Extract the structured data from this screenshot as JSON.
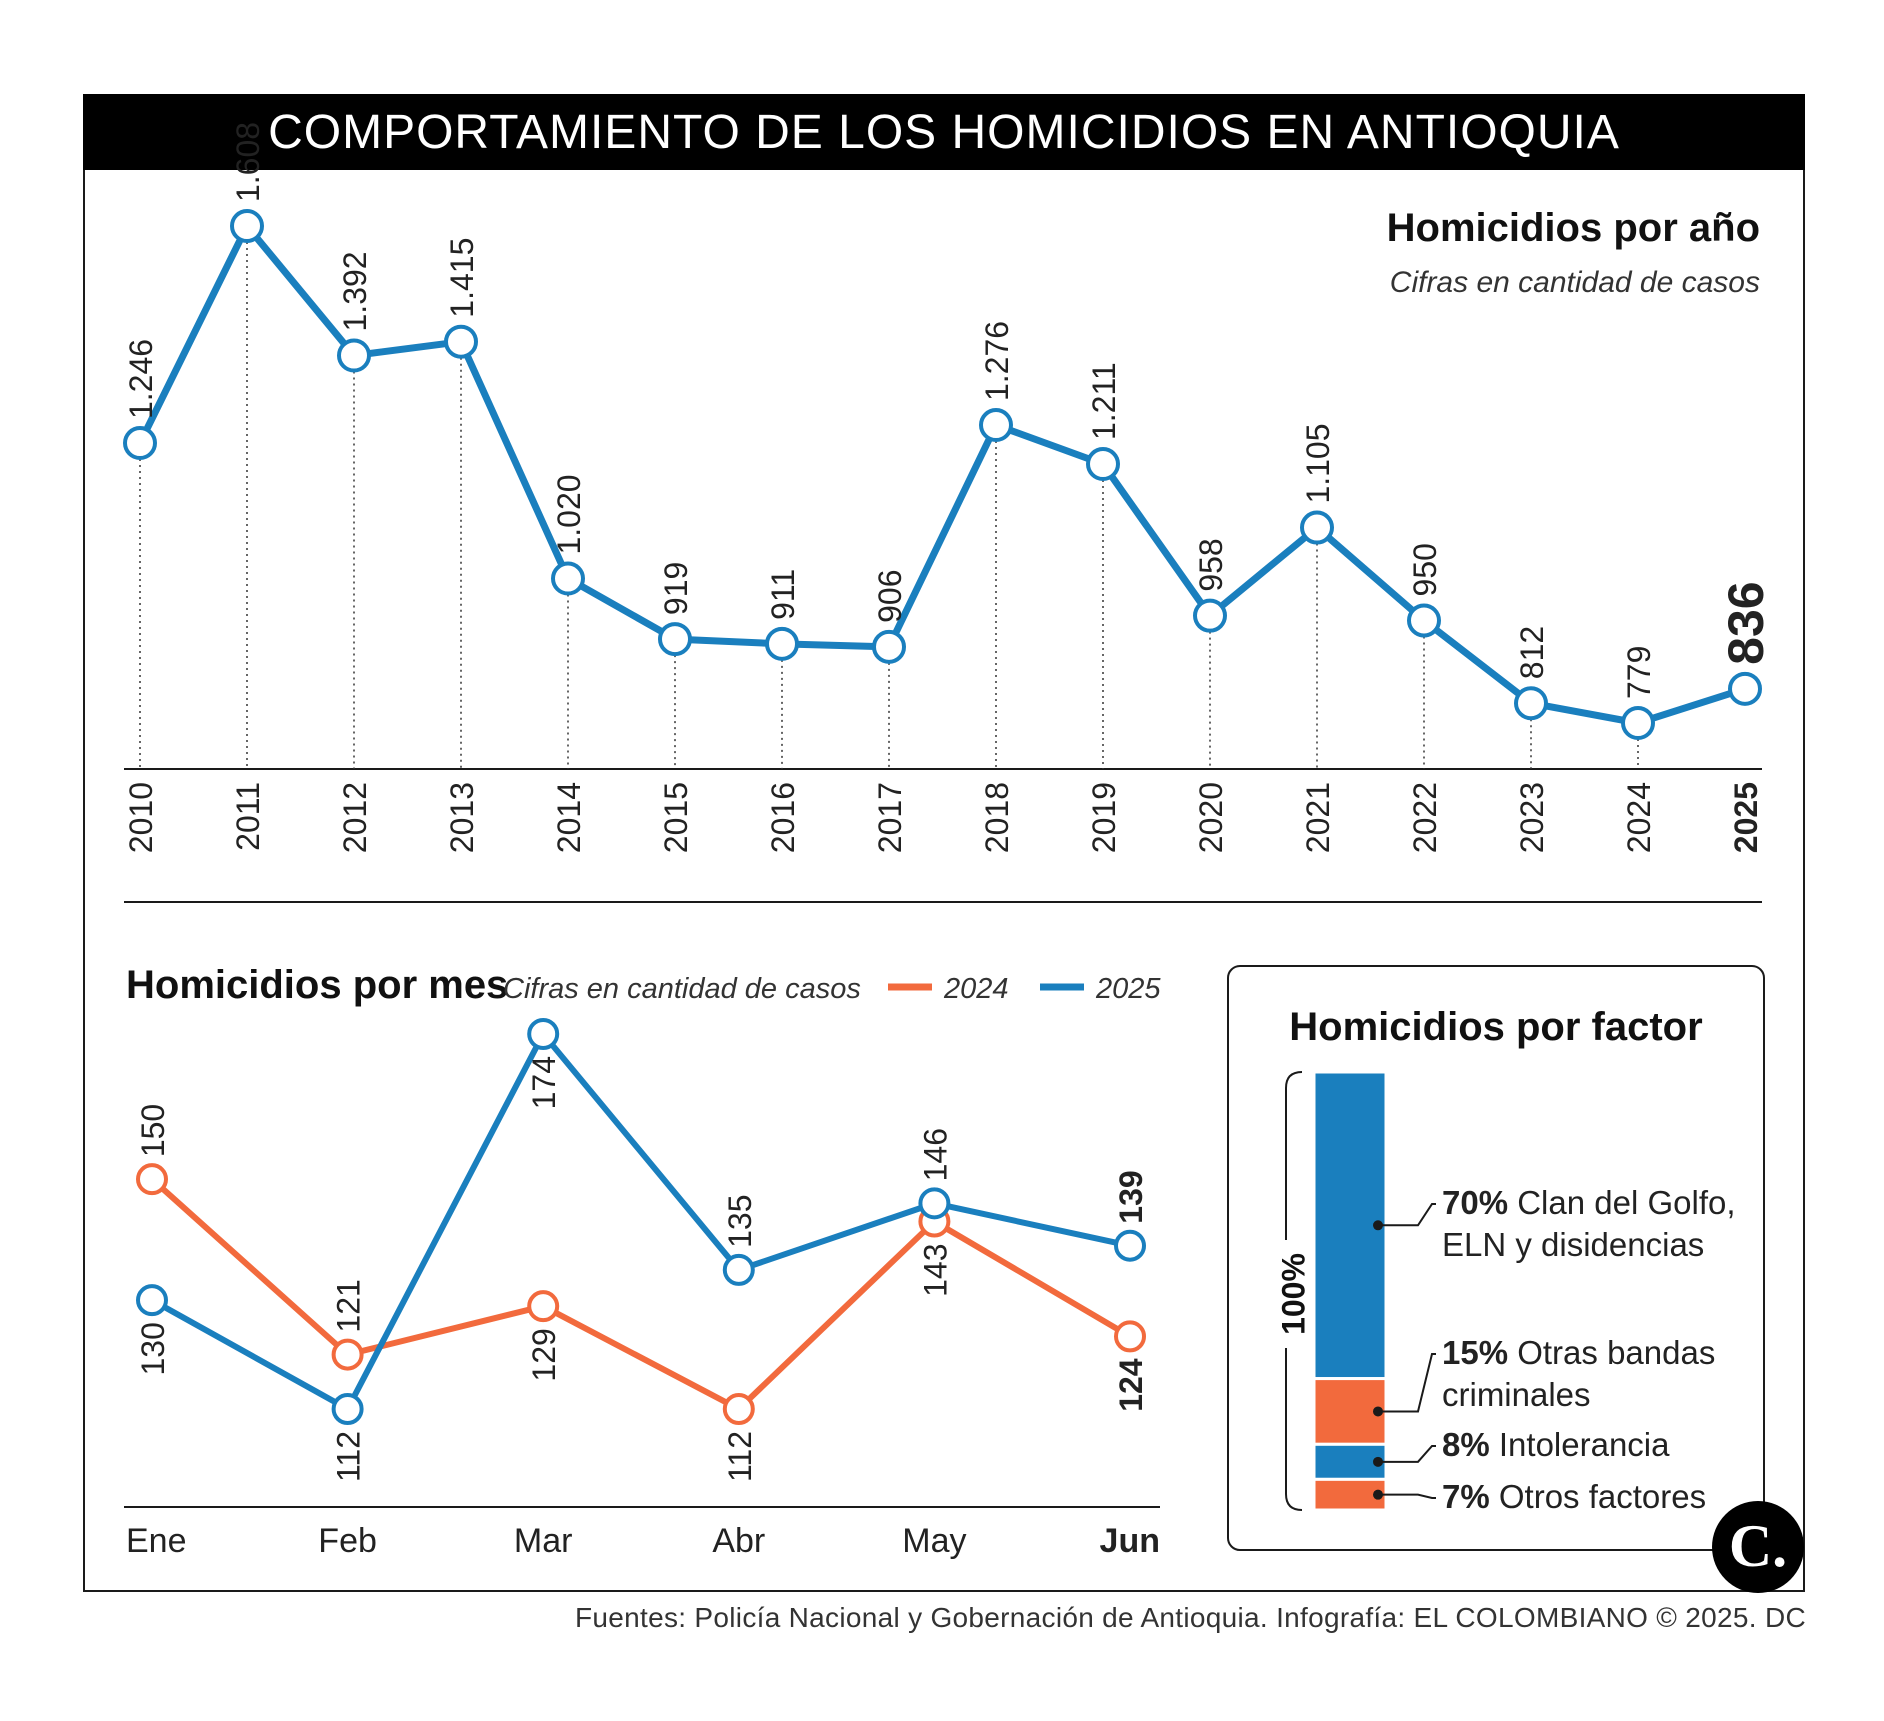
{
  "header": {
    "title": "COMPORTAMIENTO DE LOS HOMICIDIOS EN ANTIOQUIA"
  },
  "source": "Fuentes: Policía Nacional y Gobernación de Antioquia. Infografía: EL COLOMBIANO © 2025. DC",
  "logo": {
    "letter": "C."
  },
  "colors": {
    "blue": "#1a7fbe",
    "orange": "#f26a3d",
    "dark": "#1a1a1a"
  },
  "chart_data": [
    {
      "type": "line",
      "title": "Homicidios por año",
      "subtitle": "Cifras en cantidad de casos",
      "categories": [
        "2010",
        "2011",
        "2012",
        "2013",
        "2014",
        "2015",
        "2016",
        "2017",
        "2018",
        "2019",
        "2020",
        "2021",
        "2022",
        "2023",
        "2024",
        "2025"
      ],
      "values": [
        1246,
        1608,
        1392,
        1415,
        1020,
        919,
        911,
        906,
        1276,
        1211,
        958,
        1105,
        950,
        812,
        779,
        836
      ],
      "labels": [
        "1.246",
        "1.608",
        "1.392",
        "1.415",
        "1.020",
        "919",
        "911",
        "906",
        "1.276",
        "1.211",
        "958",
        "1.105",
        "950",
        "812",
        "779",
        "836"
      ],
      "highlight": "2025",
      "ylim": [
        700,
        1640
      ]
    },
    {
      "type": "line",
      "title": "Homicidios por mes",
      "subtitle": "Cifras en cantidad de casos",
      "categories": [
        "Ene",
        "Feb",
        "Mar",
        "Abr",
        "May",
        "Jun"
      ],
      "highlight": "Jun",
      "series": [
        {
          "name": "2024",
          "color": "#f26a3d",
          "values": [
            150,
            121,
            129,
            112,
            143,
            124
          ]
        },
        {
          "name": "2025",
          "color": "#1a7fbe",
          "values": [
            130,
            112,
            174,
            135,
            146,
            139
          ]
        }
      ],
      "ylim": [
        100,
        180
      ]
    },
    {
      "type": "bar",
      "title": "Homicidios por factor",
      "total_label": "100%",
      "segments": [
        {
          "pct": "70%",
          "label_lines": [
            "Clan del Golfo,",
            "ELN y disidencias"
          ],
          "value": 70,
          "color": "#1a7fbe"
        },
        {
          "pct": "15%",
          "label_lines": [
            "Otras bandas",
            "criminales"
          ],
          "value": 15,
          "color": "#f26a3d"
        },
        {
          "pct": "8%",
          "label_lines": [
            "Intolerancia"
          ],
          "value": 8,
          "color": "#1a7fbe"
        },
        {
          "pct": "7%",
          "label_lines": [
            "Otros factores"
          ],
          "value": 7,
          "color": "#f26a3d"
        }
      ]
    }
  ]
}
